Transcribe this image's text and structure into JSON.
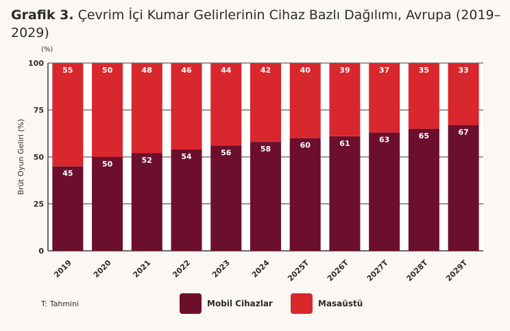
{
  "title": {
    "bold": "Grafik 3.",
    "text": " Çevrim İçi Kumar Gelirlerinin Cihaz Bazlı Dağılımı, Avrupa (2019–2029)"
  },
  "unit_label": "(%)",
  "footnote": "T: Tahmini",
  "colors": {
    "mobil": "#6b0f2c",
    "masaustu": "#d9272e"
  },
  "chart_data": {
    "type": "bar",
    "stacked": true,
    "ylabel": "Brüt Oyun Geliri (%)",
    "ylim": [
      0,
      100
    ],
    "yticks": [
      0,
      25,
      50,
      75,
      100
    ],
    "grid": true,
    "legend_position": "bottom",
    "categories": [
      "2019",
      "2020",
      "2021",
      "2022",
      "2023",
      "2024",
      "2025T",
      "2026T",
      "2027T",
      "2028T",
      "2029T"
    ],
    "series": [
      {
        "name": "Mobil Cihazlar",
        "values": [
          45,
          50,
          52,
          54,
          56,
          58,
          60,
          61,
          63,
          65,
          67
        ]
      },
      {
        "name": "Masaüstü",
        "values": [
          55,
          50,
          48,
          46,
          44,
          42,
          40,
          39,
          37,
          35,
          33
        ]
      }
    ]
  }
}
